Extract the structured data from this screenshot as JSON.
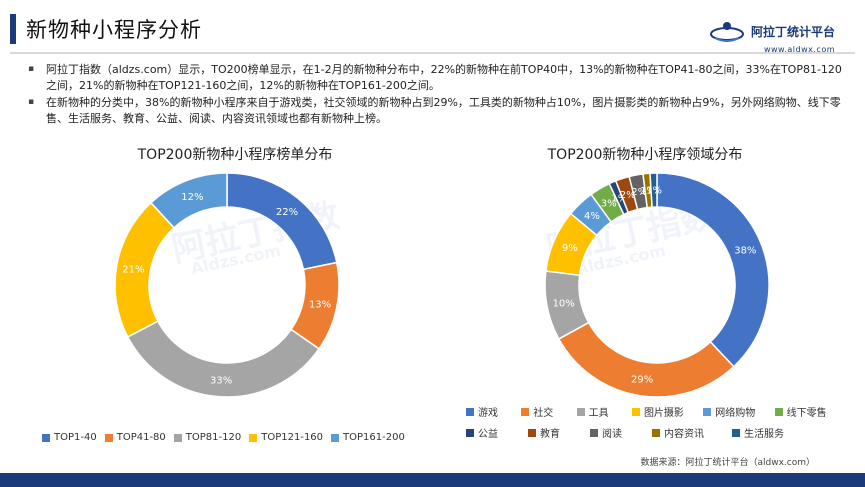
{
  "page": {
    "title": "新物种小程序分析",
    "logo_name": "阿拉丁统计平台",
    "logo_url": "www.aldwx.com",
    "bullets": [
      "阿拉丁指数（aldzs.com）显示，TO200榜单显示，在1-2月的新物种分布中，22%的新物种在前TOP40中，13%的新物种在TOP41-80之间，33%在TOP81-120之间，21%的新物种在TOP121-160之间，12%的新物种在TOP161-200之间。",
      "在新物种的分类中，38%的新物种小程序来自于游戏类，社交领域的新物种占到29%，工具类的新物种占10%，图片摄影类的新物种占9%，另外网络购物、线下零售、生活服务、教育、公益、阅读、内容资讯领域也都有新物种上榜。"
    ],
    "source": "数据来源：阿拉丁统计平台（aldwx.com）",
    "watermark_text": "阿拉丁指数",
    "watermark_sub": "Aldzs.com"
  },
  "chart_data": [
    {
      "type": "pie",
      "title": "TOP200新物种小程序榜单分布",
      "categories": [
        "TOP1-40",
        "TOP41-80",
        "TOP81-120",
        "TOP121-160",
        "TOP161-200"
      ],
      "values": [
        22,
        13,
        33,
        21,
        12
      ],
      "labels": [
        "22%",
        "13%",
        "33%",
        "21%",
        "12%"
      ],
      "colors": [
        "#4472C4",
        "#ED7D31",
        "#A5A5A5",
        "#FFC000",
        "#5B9BD5"
      ],
      "legend": "bottom"
    },
    {
      "type": "pie",
      "title": "TOP200新物种小程序领域分布",
      "categories": [
        "游戏",
        "社交",
        "工具",
        "图片摄影",
        "网络购物",
        "线下零售",
        "公益",
        "教育",
        "阅读",
        "内容资讯",
        "生活服务"
      ],
      "values": [
        38,
        29,
        10,
        9,
        4,
        3,
        1,
        2,
        2,
        1,
        1
      ],
      "labels": [
        "38%",
        "29%",
        "10%",
        "9%",
        "4%",
        "3%",
        "1%",
        "2%",
        "2%",
        "1%",
        "1%"
      ],
      "colors": [
        "#4472C4",
        "#ED7D31",
        "#A5A5A5",
        "#FFC000",
        "#5B9BD5",
        "#70AD47",
        "#264478",
        "#9E480E",
        "#636363",
        "#997300",
        "#255E91"
      ],
      "legend": "bottom"
    }
  ]
}
